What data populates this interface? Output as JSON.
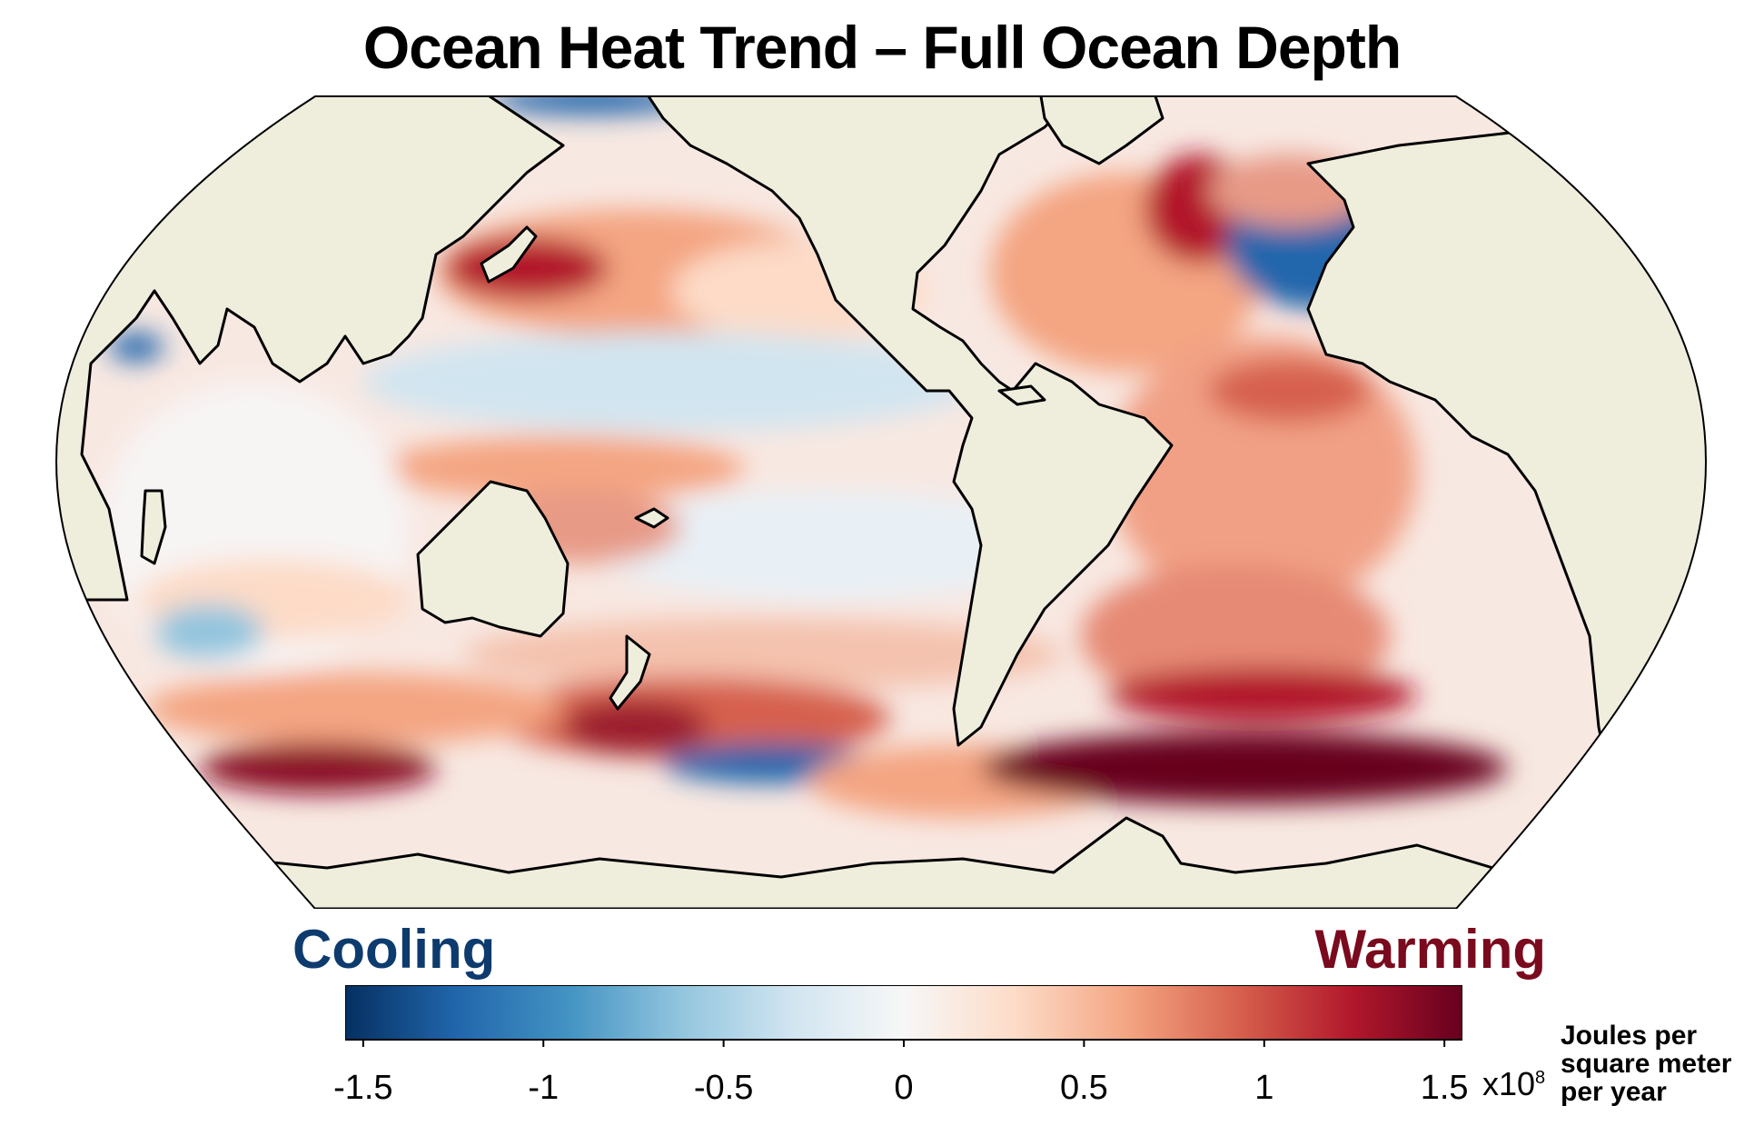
{
  "title": "Ocean Heat Trend – Full Ocean Depth",
  "labels": {
    "cooling": "Cooling",
    "warming": "Warming",
    "units_line1": "Joules per",
    "units_line2": "square meter",
    "units_line3": "per year",
    "multiplier_base": "x10",
    "multiplier_exp": "8"
  },
  "colors": {
    "cooling_text": "#0d3b6e",
    "warming_text": "#7a0a1d",
    "land": "#efeedd",
    "coastline": "#000000",
    "scale": [
      "#053061",
      "#2166ac",
      "#4393c3",
      "#92c5de",
      "#d1e5f0",
      "#f7f7f7",
      "#fddbc7",
      "#f4a582",
      "#d6604d",
      "#b2182b",
      "#67001f"
    ]
  },
  "colorbar": {
    "min": -1.55,
    "max": 1.55,
    "ticks": [
      {
        "value": -1.5,
        "label": "-1.5"
      },
      {
        "value": -1,
        "label": "-1"
      },
      {
        "value": -0.5,
        "label": "-0.5"
      },
      {
        "value": 0,
        "label": "0"
      },
      {
        "value": 0.5,
        "label": "0.5"
      },
      {
        "value": 1,
        "label": "1"
      },
      {
        "value": 1.5,
        "label": "1.5"
      }
    ]
  },
  "map": {
    "projection": "Robinson, Pacific-centred",
    "regions": [
      {
        "name": "north-pacific-kuroshio-warming",
        "value": 1.3
      },
      {
        "name": "north-pacific-band-warming",
        "value": 0.6
      },
      {
        "name": "subtropical-north-pacific-cooling",
        "value": -0.25
      },
      {
        "name": "western-tropical-pacific-warming",
        "value": 0.7
      },
      {
        "name": "southwest-pacific-warming",
        "value": 0.7
      },
      {
        "name": "tasman-sea-warming",
        "value": 1.2
      },
      {
        "name": "southern-pacific-cooling",
        "value": -1.1
      },
      {
        "name": "gulf-stream-warming",
        "value": 1.3
      },
      {
        "name": "subpolar-north-atlantic-cooling",
        "value": -1.3
      },
      {
        "name": "south-atlantic-warming",
        "value": 0.8
      },
      {
        "name": "southern-ocean-atlantic-sector-warming",
        "value": 1.5
      },
      {
        "name": "southern-ocean-indian-sector-warming",
        "value": 1.3
      },
      {
        "name": "indian-ocean-mixed",
        "value": 0.3
      },
      {
        "name": "south-indian-cooling-patch",
        "value": -0.6
      },
      {
        "name": "arabian-sea-cooling-patch",
        "value": -0.9
      },
      {
        "name": "arctic-cooling-patch",
        "value": -1.2
      }
    ]
  }
}
